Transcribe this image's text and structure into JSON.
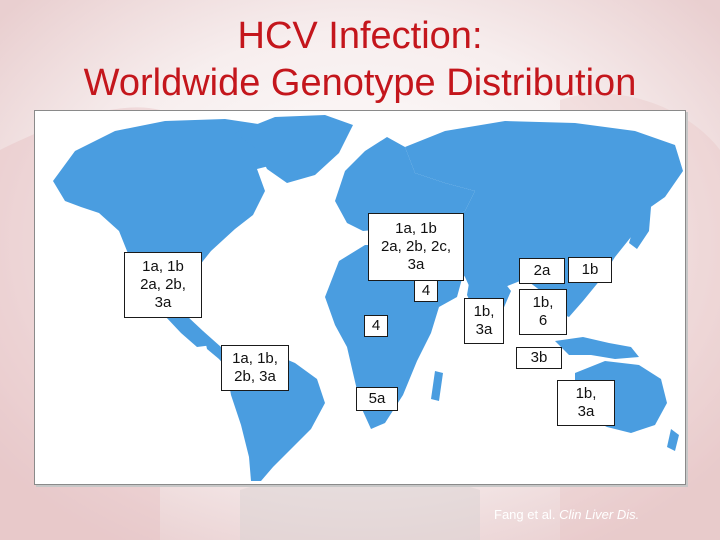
{
  "slide": {
    "title_line_1": "HCV Infection:",
    "title_line_2": "Worldwide Genotype Distribution",
    "citation_authors": "Fang et al.",
    "citation_journal": "Clin Liver Dis."
  },
  "colors": {
    "title": "#c4161c",
    "land": "#4a9de0",
    "ocean": "#ffffff",
    "label_bg": "#ffffff"
  },
  "regions": [
    {
      "id": "north-america",
      "text": "1a, 1b\n2a, 2b,\n3a"
    },
    {
      "id": "europe-middle-east",
      "text": "1a, 1b\n2a, 2b, 2c,\n3a"
    },
    {
      "id": "egypt",
      "text": "4"
    },
    {
      "id": "central-africa",
      "text": "4"
    },
    {
      "id": "south-america",
      "text": "1a, 1b,\n2b, 3a"
    },
    {
      "id": "south-africa",
      "text": "5a"
    },
    {
      "id": "india",
      "text": "1b,\n3a"
    },
    {
      "id": "china",
      "text": "2a"
    },
    {
      "id": "japan",
      "text": "1b"
    },
    {
      "id": "southeast-asia",
      "text": "1b,\n6"
    },
    {
      "id": "indonesia",
      "text": "3b"
    },
    {
      "id": "australia",
      "text": "1b,\n3a"
    }
  ]
}
